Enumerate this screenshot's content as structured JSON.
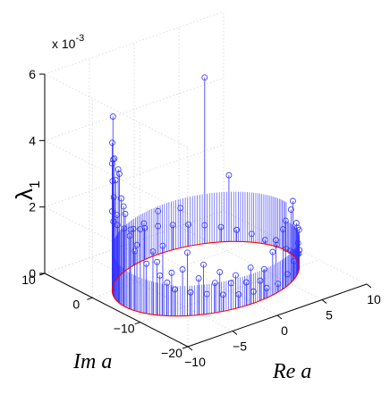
{
  "chart_data": {
    "type": "scatter",
    "subtype": "3d-stem",
    "xlabel": "Re a",
    "ylabel": "Im a",
    "zlabel": "λ",
    "zlabel_subscript": "1",
    "z_multiplier": "x 10",
    "z_multiplier_exponent": "-3",
    "xlim": [
      -10,
      10
    ],
    "ylim": [
      -20,
      10
    ],
    "zlim": [
      0,
      6
    ],
    "x_ticks": [
      "−10",
      "−5",
      "0",
      "5",
      "10"
    ],
    "y_ticks": [
      "−20",
      "−10",
      "0",
      "10"
    ],
    "z_ticks": [
      "0",
      "2",
      "4",
      "6"
    ],
    "grid": true,
    "marker": "circle",
    "stem_color": "#3333ff",
    "marker_color": "#3333ff",
    "base_curve_color": "#ff0000",
    "base_curve": {
      "shape": "ellipse",
      "center": [
        0,
        -5
      ],
      "radius_x": 9,
      "radius_y": 10
    },
    "series": [
      {
        "points": [
          {
            "angle": 0,
            "z": 0.05
          },
          {
            "angle": 10,
            "z": 0.06
          },
          {
            "angle": 20,
            "z": 0.12
          },
          {
            "angle": 30,
            "z": 0.25
          },
          {
            "angle": 40,
            "z": 0.35
          },
          {
            "angle": 50,
            "z": 0.45
          },
          {
            "angle": 60,
            "z": 0.55
          },
          {
            "angle": 70,
            "z": 0.65
          },
          {
            "angle": 80,
            "z": 0.75
          },
          {
            "angle": 90,
            "z": 0.85
          },
          {
            "angle": 100,
            "z": 0.95
          },
          {
            "angle": 110,
            "z": 1.1
          },
          {
            "angle": 120,
            "z": 1.3
          },
          {
            "angle": 130,
            "z": 1.6
          },
          {
            "angle": 140,
            "z": 1.9
          },
          {
            "angle": 150,
            "z": 2.4
          },
          {
            "angle": 160,
            "z": 3.0
          },
          {
            "angle": 165,
            "z": 3.6
          },
          {
            "angle": 170,
            "z": 4.0
          },
          {
            "angle": 175,
            "z": 3.2
          },
          {
            "angle": 180,
            "z": 2.8
          },
          {
            "angle": 185,
            "z": 2.2
          },
          {
            "angle": 190,
            "z": 1.8
          },
          {
            "angle": 195,
            "z": 2.5
          },
          {
            "angle": 200,
            "z": 1.5
          },
          {
            "angle": 205,
            "z": 1.9
          },
          {
            "angle": 210,
            "z": 1.2
          },
          {
            "angle": 215,
            "z": 1.0
          },
          {
            "angle": 220,
            "z": 0.8
          },
          {
            "angle": 225,
            "z": 1.4
          },
          {
            "angle": 230,
            "z": 0.7
          },
          {
            "angle": 235,
            "z": 1.1
          },
          {
            "angle": 240,
            "z": 0.6
          },
          {
            "angle": 245,
            "z": 0.9
          },
          {
            "angle": 250,
            "z": 0.5
          },
          {
            "angle": 255,
            "z": 0.8
          },
          {
            "angle": 260,
            "z": 0.4
          },
          {
            "angle": 265,
            "z": 0.7
          },
          {
            "angle": 270,
            "z": 0.35
          },
          {
            "angle": 275,
            "z": 0.6
          },
          {
            "angle": 280,
            "z": 0.3
          },
          {
            "angle": 285,
            "z": 1.3
          },
          {
            "angle": 290,
            "z": 0.25
          },
          {
            "angle": 295,
            "z": 1.8
          },
          {
            "angle": 300,
            "z": 0.35
          },
          {
            "angle": 305,
            "z": 2.2
          },
          {
            "angle": 310,
            "z": 0.55
          },
          {
            "angle": 315,
            "z": 1.6
          },
          {
            "angle": 320,
            "z": 0.9
          },
          {
            "angle": 325,
            "z": 1.2
          },
          {
            "angle": 330,
            "z": 0.5
          },
          {
            "angle": 335,
            "z": 0.3
          },
          {
            "angle": 340,
            "z": 0.2
          },
          {
            "angle": 345,
            "z": 0.12
          },
          {
            "angle": 350,
            "z": 0.08
          },
          {
            "angle": 355,
            "z": 0.06
          },
          {
            "angle": 152,
            "z": 4.5
          },
          {
            "angle": 158,
            "z": 4.1
          },
          {
            "angle": 172,
            "z": 3.9
          },
          {
            "angle": 148,
            "z": 3.8
          },
          {
            "angle": 142,
            "z": 5.1
          },
          {
            "angle": 162,
            "z": 4.2
          },
          {
            "angle": 178,
            "z": 3.0
          },
          {
            "angle": 155,
            "z": 3.4
          },
          {
            "angle": 168,
            "z": 2.6
          },
          {
            "angle": 186,
            "z": 2.4
          },
          {
            "angle": 192,
            "z": 2.0
          },
          {
            "angle": 198,
            "z": 2.7
          },
          {
            "angle": 208,
            "z": 1.6
          },
          {
            "angle": 212,
            "z": 2.1
          },
          {
            "angle": 218,
            "z": 1.3
          },
          {
            "angle": 228,
            "z": 1.9
          },
          {
            "angle": 238,
            "z": 1.5
          },
          {
            "angle": 248,
            "z": 1.2
          },
          {
            "angle": 258,
            "z": 1.0
          },
          {
            "angle": 268,
            "z": 1.1
          },
          {
            "angle": 278,
            "z": 0.9
          },
          {
            "angle": 288,
            "z": 1.6
          },
          {
            "angle": 298,
            "z": 2.0
          },
          {
            "angle": 308,
            "z": 2.4
          },
          {
            "angle": 318,
            "z": 1.4
          },
          {
            "angle": 60,
            "z": 5.0
          },
          {
            "angle": 45,
            "z": 2.0
          },
          {
            "angle": 75,
            "z": 1.2
          },
          {
            "angle": 90,
            "z": 1.3
          }
        ]
      }
    ]
  }
}
